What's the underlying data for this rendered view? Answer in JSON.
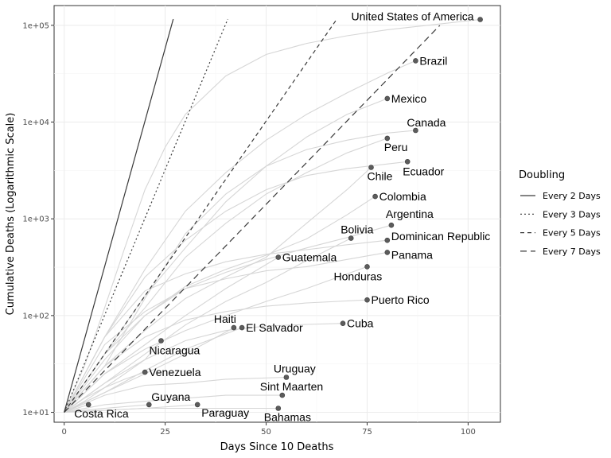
{
  "chart_data": {
    "type": "line",
    "xlabel": "Days Since 10 Deaths",
    "ylabel": "Cumulative Deaths (Logarithmic Scale)",
    "x_scale": "linear",
    "y_scale": "log10",
    "xlim": [
      -2.5,
      108
    ],
    "ylim": [
      7.9,
      160000
    ],
    "x_ticks": [
      0,
      25,
      50,
      75,
      100
    ],
    "x_tick_labels": [
      "0",
      "25",
      "50",
      "75",
      "100"
    ],
    "y_ticks": [
      10,
      100,
      1000,
      10000,
      100000
    ],
    "y_tick_labels": [
      "1e+01",
      "1e+02",
      "1e+03",
      "1e+04",
      "1e+05"
    ],
    "grid": true,
    "legend": {
      "title": "Doubling",
      "position": "right",
      "entries": [
        {
          "label": "Every 2 Days",
          "linetype": "solid",
          "doubling_days": 2
        },
        {
          "label": "Every 3 Days",
          "linetype": "dotted",
          "doubling_days": 3
        },
        {
          "label": "Every 5 Days",
          "linetype": "dashed",
          "doubling_days": 5
        },
        {
          "label": "Every 7 Days",
          "linetype": "longdash",
          "doubling_days": 7
        }
      ]
    },
    "series": [
      {
        "name": "United States of America",
        "x": [
          0,
          5,
          10,
          15,
          20,
          25,
          30,
          40,
          50,
          60,
          70,
          80,
          90,
          103
        ],
        "y": [
          10,
          30,
          120,
          500,
          2000,
          5500,
          12000,
          30000,
          50000,
          65000,
          78000,
          90000,
          100000,
          115000
        ]
      },
      {
        "name": "Brazil",
        "x": [
          0,
          10,
          20,
          30,
          40,
          50,
          60,
          70,
          80,
          87
        ],
        "y": [
          10,
          60,
          300,
          1200,
          3000,
          6500,
          12000,
          20000,
          32000,
          43000
        ]
      },
      {
        "name": "Mexico",
        "x": [
          0,
          10,
          20,
          30,
          40,
          50,
          60,
          70,
          80
        ],
        "y": [
          10,
          40,
          160,
          500,
          1500,
          3500,
          7000,
          12000,
          17500
        ]
      },
      {
        "name": "Canada",
        "x": [
          0,
          10,
          20,
          30,
          40,
          50,
          60,
          70,
          80,
          87
        ],
        "y": [
          10,
          30,
          150,
          700,
          1800,
          3500,
          5200,
          6500,
          7700,
          8200
        ]
      },
      {
        "name": "Peru",
        "x": [
          0,
          10,
          20,
          30,
          40,
          50,
          60,
          70,
          80
        ],
        "y": [
          10,
          40,
          120,
          400,
          900,
          1800,
          3000,
          4800,
          6800
        ]
      },
      {
        "name": "Ecuador",
        "x": [
          0,
          10,
          20,
          30,
          40,
          50,
          60,
          70,
          85
        ],
        "y": [
          10,
          60,
          250,
          600,
          1200,
          2000,
          2800,
          3300,
          3900
        ]
      },
      {
        "name": "Chile",
        "x": [
          0,
          10,
          20,
          30,
          40,
          50,
          60,
          70,
          76
        ],
        "y": [
          10,
          30,
          70,
          150,
          250,
          400,
          900,
          2000,
          3400
        ]
      },
      {
        "name": "Colombia",
        "x": [
          0,
          10,
          20,
          30,
          40,
          50,
          60,
          70,
          77
        ],
        "y": [
          10,
          35,
          100,
          200,
          300,
          420,
          620,
          1100,
          1700
        ]
      },
      {
        "name": "Argentina",
        "x": [
          0,
          10,
          20,
          30,
          40,
          50,
          60,
          70,
          81
        ],
        "y": [
          10,
          40,
          100,
          190,
          280,
          380,
          500,
          640,
          860
        ]
      },
      {
        "name": "Bolivia",
        "x": [
          0,
          10,
          20,
          30,
          40,
          50,
          60,
          71
        ],
        "y": [
          10,
          20,
          40,
          80,
          140,
          220,
          370,
          630
        ]
      },
      {
        "name": "Dominican Republic",
        "x": [
          0,
          10,
          20,
          30,
          40,
          50,
          60,
          70,
          80
        ],
        "y": [
          10,
          60,
          180,
          270,
          360,
          430,
          480,
          540,
          600
        ]
      },
      {
        "name": "Panama",
        "x": [
          0,
          10,
          20,
          30,
          40,
          50,
          60,
          70,
          80
        ],
        "y": [
          10,
          50,
          110,
          190,
          240,
          290,
          320,
          380,
          450
        ]
      },
      {
        "name": "Guatemala",
        "x": [
          0,
          10,
          20,
          30,
          40,
          53
        ],
        "y": [
          10,
          25,
          50,
          100,
          190,
          400
        ]
      },
      {
        "name": "Honduras",
        "x": [
          0,
          10,
          20,
          30,
          40,
          50,
          60,
          75
        ],
        "y": [
          10,
          25,
          45,
          70,
          100,
          140,
          190,
          320
        ]
      },
      {
        "name": "Puerto Rico",
        "x": [
          0,
          10,
          20,
          30,
          40,
          50,
          60,
          75
        ],
        "y": [
          10,
          30,
          60,
          90,
          110,
          125,
          135,
          145
        ]
      },
      {
        "name": "Cuba",
        "x": [
          0,
          10,
          20,
          30,
          40,
          50,
          60,
          69
        ],
        "y": [
          10,
          20,
          35,
          55,
          70,
          78,
          81,
          83
        ]
      },
      {
        "name": "Haiti",
        "x": [
          0,
          10,
          20,
          30,
          42
        ],
        "y": [
          10,
          16,
          25,
          40,
          75
        ]
      },
      {
        "name": "El Salvador",
        "x": [
          0,
          10,
          20,
          30,
          44
        ],
        "y": [
          10,
          16,
          27,
          45,
          75
        ]
      },
      {
        "name": "Nicaragua",
        "x": [
          0,
          5,
          10,
          15,
          20,
          24
        ],
        "y": [
          10,
          13,
          18,
          25,
          35,
          55
        ]
      },
      {
        "name": "Venezuela",
        "x": [
          0,
          5,
          10,
          15,
          20
        ],
        "y": [
          10,
          14,
          18,
          22,
          26
        ]
      },
      {
        "name": "Uruguay",
        "x": [
          0,
          10,
          20,
          30,
          40,
          55
        ],
        "y": [
          10,
          15,
          19,
          20,
          22,
          23
        ]
      },
      {
        "name": "Sint Maarten",
        "x": [
          0,
          10,
          20,
          30,
          40,
          54
        ],
        "y": [
          10,
          12,
          13,
          14,
          15,
          15
        ]
      },
      {
        "name": "Guyana",
        "x": [
          0,
          10,
          21
        ],
        "y": [
          10,
          11,
          12
        ]
      },
      {
        "name": "Paraguay",
        "x": [
          0,
          10,
          20,
          33
        ],
        "y": [
          10,
          10.5,
          11,
          12
        ]
      },
      {
        "name": "Costa Rica",
        "x": [
          0,
          6
        ],
        "y": [
          10,
          12
        ]
      },
      {
        "name": "Bahamas",
        "x": [
          0,
          10,
          20,
          30,
          40,
          53
        ],
        "y": [
          10,
          10.5,
          11,
          11,
          11,
          11
        ]
      }
    ],
    "reference_lines": [
      {
        "doubling_days": 2,
        "linetype": "solid",
        "x_end": 27
      },
      {
        "doubling_days": 3,
        "linetype": "dotted",
        "x_end": 40.5
      },
      {
        "doubling_days": 5,
        "linetype": "dashed",
        "x_end": 67.5
      },
      {
        "doubling_days": 7,
        "linetype": "longdash",
        "x_end": 93
      }
    ]
  }
}
